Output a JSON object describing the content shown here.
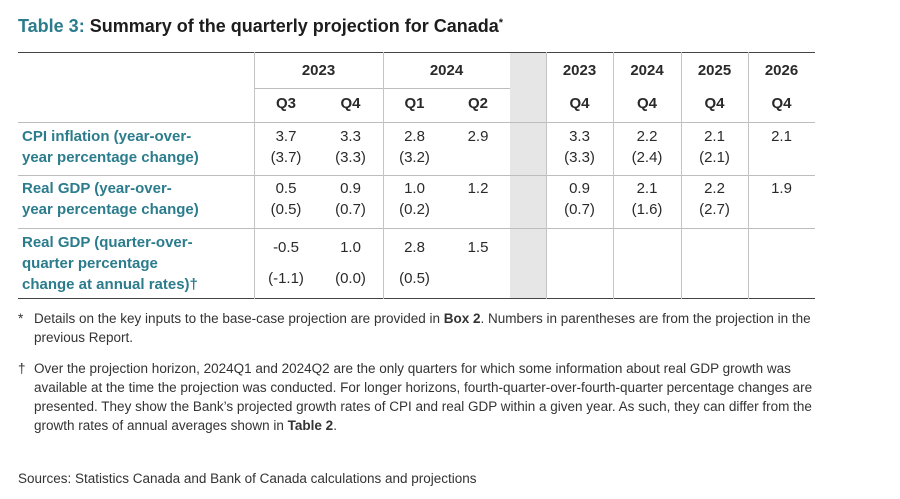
{
  "title": {
    "number": "Table 3:",
    "text": "Summary of the quarterly projection for Canada",
    "marker": "*"
  },
  "header": {
    "years_quarterly": [
      "2023",
      "2024"
    ],
    "years_annual": [
      "2023",
      "2024",
      "2025",
      "2026"
    ],
    "quarters": [
      "Q3",
      "Q4",
      "Q1",
      "Q2"
    ],
    "annual_quarters": [
      "Q4",
      "Q4",
      "Q4",
      "Q4"
    ]
  },
  "rows": [
    {
      "label_lines": [
        "CPI inflation (year-over-",
        "year percentage change)"
      ],
      "quarterly": [
        {
          "value": "3.7",
          "previous": "(3.7)"
        },
        {
          "value": "3.3",
          "previous": "(3.3)"
        },
        {
          "value": "2.8",
          "previous": "(3.2)"
        },
        {
          "value": "2.9",
          "previous": ""
        }
      ],
      "annual": [
        {
          "value": "3.3",
          "previous": "(3.3)"
        },
        {
          "value": "2.2",
          "previous": "(2.4)"
        },
        {
          "value": "2.1",
          "previous": "(2.1)"
        },
        {
          "value": "2.1",
          "previous": ""
        }
      ]
    },
    {
      "label_lines": [
        "Real GDP (year-over-",
        "year percentage change)"
      ],
      "quarterly": [
        {
          "value": "0.5",
          "previous": "(0.5)"
        },
        {
          "value": "0.9",
          "previous": "(0.7)"
        },
        {
          "value": "1.0",
          "previous": "(0.2)"
        },
        {
          "value": "1.2",
          "previous": ""
        }
      ],
      "annual": [
        {
          "value": "0.9",
          "previous": "(0.7)"
        },
        {
          "value": "2.1",
          "previous": "(1.6)"
        },
        {
          "value": "2.2",
          "previous": "(2.7)"
        },
        {
          "value": "1.9",
          "previous": ""
        }
      ]
    },
    {
      "label_lines": [
        "Real GDP (quarter-over-",
        "quarter percentage",
        "change at annual rates)†"
      ],
      "quarterly": [
        {
          "value": "-0.5",
          "previous": "(-1.1)"
        },
        {
          "value": "1.0",
          "previous": "(0.0)"
        },
        {
          "value": "2.8",
          "previous": "(0.5)"
        },
        {
          "value": "1.5",
          "previous": ""
        }
      ],
      "annual": [
        {
          "value": "",
          "previous": ""
        },
        {
          "value": "",
          "previous": ""
        },
        {
          "value": "",
          "previous": ""
        },
        {
          "value": "",
          "previous": ""
        }
      ]
    }
  ],
  "notes": {
    "star_mark": "*",
    "star_part1": "Details on the key inputs to the base-case projection are provided in ",
    "star_bold": "Box 2",
    "star_part2": ". Numbers in parentheses are from the projection in the previous Report.",
    "dagger_mark": "†",
    "dagger_part1": "Over the projection horizon, 2024Q1 and 2024Q2 are the only quarters for which some information about real GDP growth was available at the time the projection was conducted. For longer horizons, fourth-quarter-over-fourth-quarter percentage changes are presented. They show the Bank’s projected growth rates of CPI and real GDP within a given year. As such, they can differ from the growth rates of annual averages shown in ",
    "dagger_bold": "Table 2",
    "dagger_part2": ".",
    "sources": "Sources: Statistics Canada and Bank of Canada calculations and projections"
  }
}
